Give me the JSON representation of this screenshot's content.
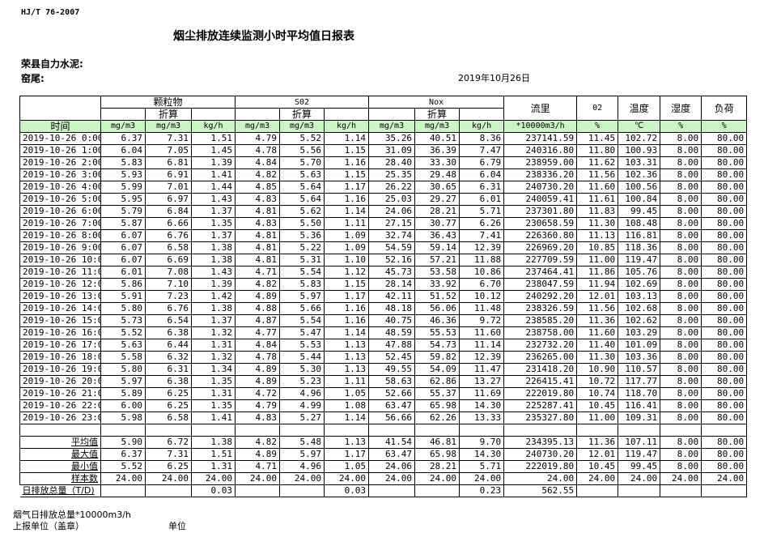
{
  "header": {
    "standard": "HJ/T  76-2007",
    "title": "烟尘排放连续监测小时平均值日报表",
    "company": "荣县自力水泥:",
    "kiln": "窑尾:",
    "date": "2019年10月26日"
  },
  "columns": {
    "groups": {
      "particulate": "颗粒物",
      "so2": "S02",
      "nox": "Nox"
    },
    "converted": "折算",
    "flow": "流里",
    "o2": "02",
    "temp": "温度",
    "humidity": "湿度",
    "load": "负荷",
    "time": "时间",
    "units": [
      "mg/m3",
      "mg/m3",
      "kg/h",
      "mg/m3",
      "mg/m3",
      "kg/h",
      "mg/m3",
      "mg/m3",
      "kg/h",
      "*10000m3/h",
      "%",
      "℃",
      "%",
      "%"
    ]
  },
  "rows": [
    [
      "2019-10-26 0:00",
      "6.37",
      "7.31",
      "1.51",
      "4.79",
      "5.52",
      "1.14",
      "35.26",
      "40.51",
      "8.36",
      "237141.59",
      "11.45",
      "102.72",
      "8.00",
      "80.00"
    ],
    [
      "2019-10-26 1:00",
      "6.04",
      "7.05",
      "1.45",
      "4.78",
      "5.56",
      "1.15",
      "31.09",
      "36.39",
      "7.47",
      "240316.80",
      "11.80",
      "100.93",
      "8.00",
      "80.00"
    ],
    [
      "2019-10-26 2:00",
      "5.83",
      "6.81",
      "1.39",
      "4.84",
      "5.70",
      "1.16",
      "28.40",
      "33.30",
      "6.79",
      "238959.00",
      "11.62",
      "103.31",
      "8.00",
      "80.00"
    ],
    [
      "2019-10-26 3:00",
      "5.93",
      "6.91",
      "1.41",
      "4.82",
      "5.63",
      "1.15",
      "25.35",
      "29.48",
      "6.04",
      "238336.20",
      "11.56",
      "102.36",
      "8.00",
      "80.00"
    ],
    [
      "2019-10-26 4:00",
      "5.99",
      "7.01",
      "1.44",
      "4.85",
      "5.64",
      "1.17",
      "26.22",
      "30.65",
      "6.31",
      "240730.20",
      "11.60",
      "100.56",
      "8.00",
      "80.00"
    ],
    [
      "2019-10-26 5:00",
      "5.95",
      "6.97",
      "1.43",
      "4.83",
      "5.64",
      "1.16",
      "25.03",
      "29.27",
      "6.01",
      "240059.41",
      "11.61",
      "100.84",
      "8.00",
      "80.00"
    ],
    [
      "2019-10-26 6:00",
      "5.79",
      "6.84",
      "1.37",
      "4.81",
      "5.62",
      "1.14",
      "24.06",
      "28.21",
      "5.71",
      "237301.80",
      "11.83",
      "99.45",
      "8.00",
      "80.00"
    ],
    [
      "2019-10-26 7:00",
      "5.87",
      "6.66",
      "1.35",
      "4.83",
      "5.50",
      "1.11",
      "27.15",
      "30.77",
      "6.26",
      "230658.59",
      "11.30",
      "108.48",
      "8.00",
      "80.00"
    ],
    [
      "2019-10-26 8:00",
      "6.07",
      "6.76",
      "1.37",
      "4.81",
      "5.36",
      "1.09",
      "32.74",
      "36.43",
      "7.41",
      "226360.80",
      "11.13",
      "116.81",
      "8.00",
      "80.00"
    ],
    [
      "2019-10-26 9:00",
      "6.07",
      "6.58",
      "1.38",
      "4.81",
      "5.22",
      "1.09",
      "54.59",
      "59.14",
      "12.39",
      "226969.20",
      "10.85",
      "118.36",
      "8.00",
      "80.00"
    ],
    [
      "2019-10-26 10:00",
      "6.07",
      "6.69",
      "1.38",
      "4.81",
      "5.31",
      "1.10",
      "52.16",
      "57.21",
      "11.88",
      "227709.59",
      "11.00",
      "119.47",
      "8.00",
      "80.00"
    ],
    [
      "2019-10-26 11:00",
      "6.01",
      "7.08",
      "1.43",
      "4.71",
      "5.54",
      "1.12",
      "45.73",
      "53.58",
      "10.86",
      "237464.41",
      "11.86",
      "105.76",
      "8.00",
      "80.00"
    ],
    [
      "2019-10-26 12:00",
      "5.86",
      "7.10",
      "1.39",
      "4.82",
      "5.83",
      "1.15",
      "28.14",
      "33.92",
      "6.70",
      "238047.59",
      "11.94",
      "102.69",
      "8.00",
      "80.00"
    ],
    [
      "2019-10-26 13:00",
      "5.91",
      "7.23",
      "1.42",
      "4.89",
      "5.97",
      "1.17",
      "42.11",
      "51.52",
      "10.12",
      "240292.20",
      "12.01",
      "103.13",
      "8.00",
      "80.00"
    ],
    [
      "2019-10-26 14:00",
      "5.80",
      "6.76",
      "1.38",
      "4.88",
      "5.66",
      "1.16",
      "48.18",
      "56.06",
      "11.48",
      "238326.59",
      "11.56",
      "102.68",
      "8.00",
      "80.00"
    ],
    [
      "2019-10-26 15:00",
      "5.73",
      "6.54",
      "1.37",
      "4.87",
      "5.54",
      "1.16",
      "40.75",
      "46.36",
      "9.72",
      "238585.20",
      "11.36",
      "102.62",
      "8.00",
      "80.00"
    ],
    [
      "2019-10-26 16:00",
      "5.52",
      "6.38",
      "1.32",
      "4.77",
      "5.47",
      "1.14",
      "48.59",
      "55.53",
      "11.60",
      "238758.00",
      "11.60",
      "103.29",
      "8.00",
      "80.00"
    ],
    [
      "2019-10-26 17:00",
      "5.63",
      "6.44",
      "1.31",
      "4.84",
      "5.53",
      "1.13",
      "47.88",
      "54.73",
      "11.14",
      "232732.20",
      "11.40",
      "101.09",
      "8.00",
      "80.00"
    ],
    [
      "2019-10-26 18:00",
      "5.58",
      "6.32",
      "1.32",
      "4.78",
      "5.44",
      "1.13",
      "52.45",
      "59.82",
      "12.39",
      "236265.00",
      "11.30",
      "103.36",
      "8.00",
      "80.00"
    ],
    [
      "2019-10-26 19:00",
      "5.80",
      "6.31",
      "1.34",
      "4.89",
      "5.30",
      "1.13",
      "49.55",
      "54.09",
      "11.47",
      "231418.20",
      "10.90",
      "110.57",
      "8.00",
      "80.00"
    ],
    [
      "2019-10-26 20:00",
      "5.97",
      "6.38",
      "1.35",
      "4.89",
      "5.23",
      "1.11",
      "58.63",
      "62.86",
      "13.27",
      "226415.41",
      "10.72",
      "117.77",
      "8.00",
      "80.00"
    ],
    [
      "2019-10-26 21:00",
      "5.89",
      "6.25",
      "1.31",
      "4.72",
      "4.96",
      "1.05",
      "52.66",
      "55.37",
      "11.69",
      "222019.80",
      "10.74",
      "118.70",
      "8.00",
      "80.00"
    ],
    [
      "2019-10-26 22:00",
      "6.00",
      "6.25",
      "1.35",
      "4.79",
      "4.99",
      "1.08",
      "63.47",
      "65.98",
      "14.30",
      "225287.41",
      "10.45",
      "116.41",
      "8.00",
      "80.00"
    ],
    [
      "2019-10-26 23:00",
      "5.98",
      "6.58",
      "1.41",
      "4.83",
      "5.27",
      "1.14",
      "56.66",
      "62.26",
      "13.33",
      "235327.80",
      "11.00",
      "109.31",
      "8.00",
      "80.00"
    ]
  ],
  "stats": [
    [
      "平均值",
      "5.90",
      "6.72",
      "1.38",
      "4.82",
      "5.48",
      "1.13",
      "41.54",
      "46.81",
      "9.70",
      "234395.13",
      "11.36",
      "107.11",
      "8.00",
      "80.00"
    ],
    [
      "最大值",
      "6.37",
      "7.31",
      "1.51",
      "4.89",
      "5.97",
      "1.17",
      "63.47",
      "65.98",
      "14.30",
      "240730.20",
      "12.01",
      "119.47",
      "8.00",
      "80.00"
    ],
    [
      "最小值",
      "5.52",
      "6.25",
      "1.31",
      "4.71",
      "4.96",
      "1.05",
      "24.06",
      "28.21",
      "5.71",
      "222019.80",
      "10.45",
      "99.45",
      "8.00",
      "80.00"
    ],
    [
      "样本数",
      "24.00",
      "24.00",
      "24.00",
      "24.00",
      "24.00",
      "24.00",
      "24.00",
      "24.00",
      "24.00",
      "24.00",
      "24.00",
      "24.00",
      "24.00",
      "24.00"
    ]
  ],
  "total": [
    "日排放总量（T/D)",
    "",
    "",
    "0.03",
    "",
    "",
    "0.03",
    "",
    "",
    "0.23",
    "562.55",
    "",
    "",
    "",
    ""
  ],
  "footer": {
    "flue_total": "烟气日排放总量*10000m3/h",
    "reporter": "上报单位（盖章）",
    "unit": "单位"
  }
}
